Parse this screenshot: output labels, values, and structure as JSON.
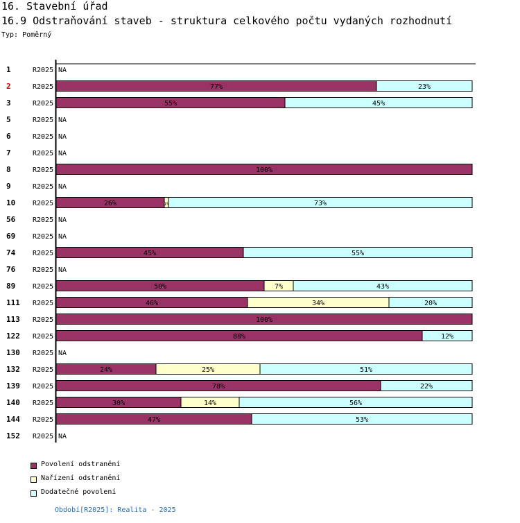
{
  "header": {
    "title": "16. Stavební úřad",
    "subtitle": "16.9 Odstraňování staveb - struktura celkového počtu vydaných rozhodnutí",
    "type_label": "Typ: Poměrný"
  },
  "colors": {
    "series": [
      "#993366",
      "#ffffcc",
      "#ccffff"
    ],
    "highlight_label": "#cc0000"
  },
  "legend": [
    "Povolení odstranění",
    "Nařízení odstranění",
    "Dodatečné povolení"
  ],
  "footer": {
    "period": "Období[R2025]: Realita - 2025"
  },
  "chart_data": {
    "type": "bar",
    "orientation": "horizontal",
    "stacked": "percent",
    "xlim": [
      0,
      100
    ],
    "period_label": "R2025",
    "na_label": "NA",
    "series": [
      {
        "name": "Povolení odstranění"
      },
      {
        "name": "Nařízení odstranění"
      },
      {
        "name": "Dodatečné povolení"
      }
    ],
    "rows": [
      {
        "id": "1",
        "values": null
      },
      {
        "id": "2",
        "values": [
          77,
          0,
          23
        ],
        "highlight": true
      },
      {
        "id": "3",
        "values": [
          55,
          0,
          45
        ]
      },
      {
        "id": "5",
        "values": null
      },
      {
        "id": "6",
        "values": null
      },
      {
        "id": "7",
        "values": null
      },
      {
        "id": "8",
        "values": [
          100,
          0,
          0
        ]
      },
      {
        "id": "9",
        "values": null
      },
      {
        "id": "10",
        "values": [
          26,
          1,
          73
        ]
      },
      {
        "id": "56",
        "values": null
      },
      {
        "id": "69",
        "values": null
      },
      {
        "id": "74",
        "values": [
          45,
          0,
          55
        ]
      },
      {
        "id": "76",
        "values": null
      },
      {
        "id": "89",
        "values": [
          50,
          7,
          43
        ]
      },
      {
        "id": "111",
        "values": [
          46,
          34,
          20
        ]
      },
      {
        "id": "113",
        "values": [
          100,
          0,
          0
        ]
      },
      {
        "id": "122",
        "values": [
          88,
          0,
          12
        ]
      },
      {
        "id": "130",
        "values": null
      },
      {
        "id": "132",
        "values": [
          24,
          25,
          51
        ]
      },
      {
        "id": "139",
        "values": [
          78,
          0,
          22
        ]
      },
      {
        "id": "140",
        "values": [
          30,
          14,
          56
        ]
      },
      {
        "id": "144",
        "values": [
          47,
          0,
          53
        ]
      },
      {
        "id": "152",
        "values": null
      }
    ]
  }
}
